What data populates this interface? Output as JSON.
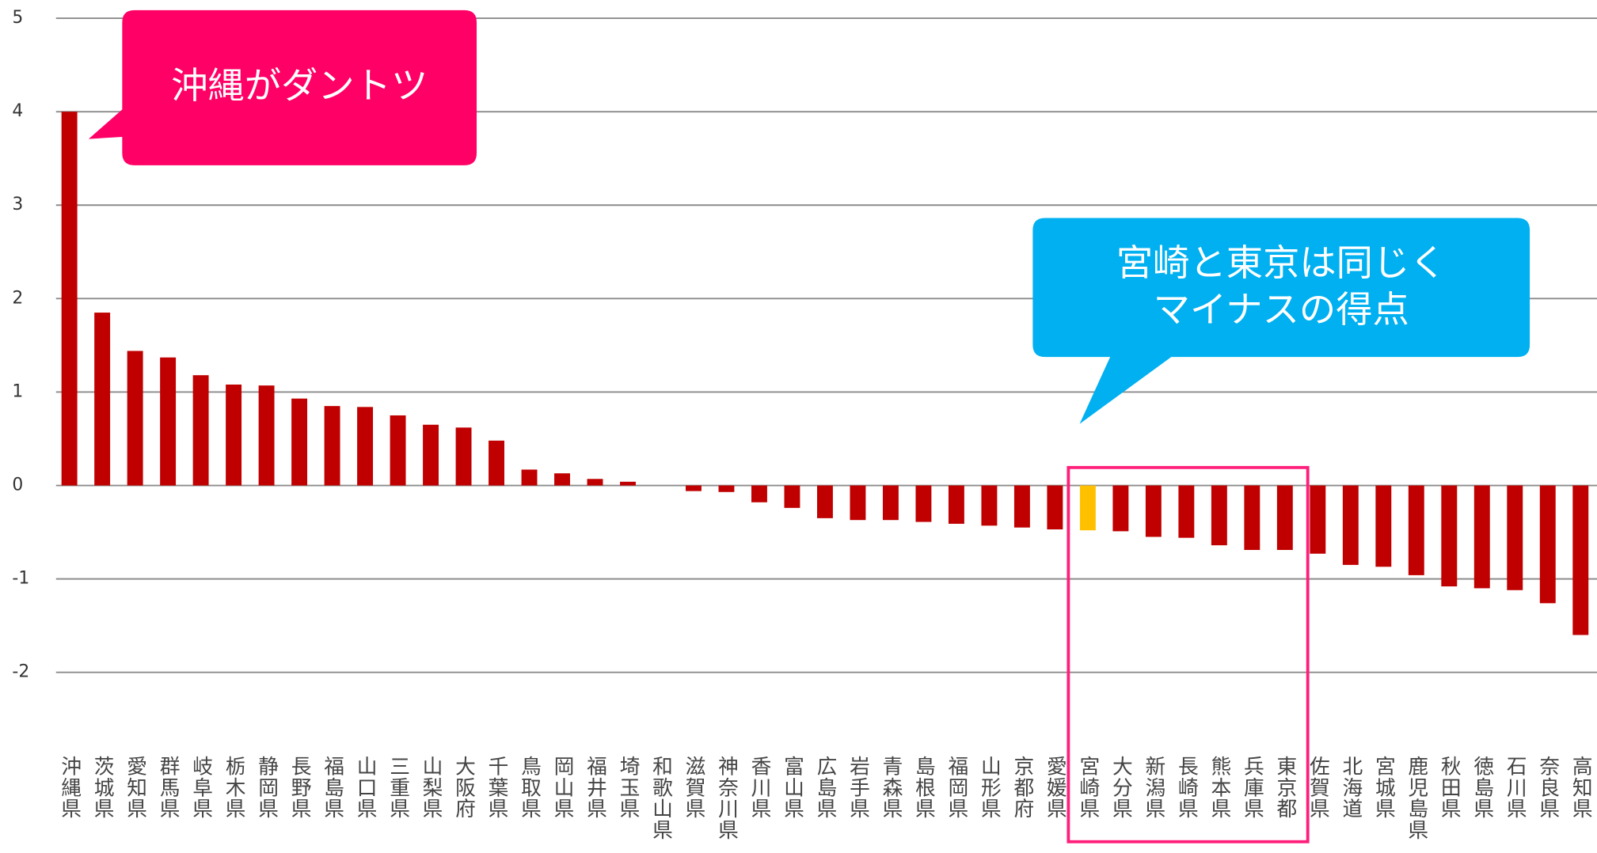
{
  "chart_data": {
    "type": "bar",
    "categories": [
      "沖縄県",
      "茨城県",
      "愛知県",
      "群馬県",
      "岐阜県",
      "栃木県",
      "静岡県",
      "長野県",
      "福島県",
      "山口県",
      "三重県",
      "山梨県",
      "大阪府",
      "千葉県",
      "鳥取県",
      "岡山県",
      "福井県",
      "埼玉県",
      "和歌山県",
      "滋賀県",
      "神奈川県",
      "香川県",
      "富山県",
      "広島県",
      "岩手県",
      "青森県",
      "島根県",
      "福岡県",
      "山形県",
      "京都府",
      "愛媛県",
      "宮崎県",
      "大分県",
      "新潟県",
      "長崎県",
      "熊本県",
      "兵庫県",
      "東京都",
      "佐賀県",
      "北海道",
      "宮城県",
      "鹿児島県",
      "秋田県",
      "徳島県",
      "石川県",
      "奈良県",
      "高知県"
    ],
    "values": [
      4.0,
      1.85,
      1.44,
      1.37,
      1.18,
      1.08,
      1.07,
      0.93,
      0.85,
      0.84,
      0.75,
      0.65,
      0.62,
      0.48,
      0.17,
      0.13,
      0.07,
      0.04,
      0.0,
      -0.06,
      -0.07,
      -0.18,
      -0.24,
      -0.35,
      -0.37,
      -0.37,
      -0.39,
      -0.41,
      -0.43,
      -0.45,
      -0.47,
      -0.48,
      -0.49,
      -0.55,
      -0.56,
      -0.64,
      -0.69,
      -0.69,
      -0.73,
      -0.85,
      -0.87,
      -0.96,
      -1.08,
      -1.1,
      -1.12,
      -1.26,
      -1.6
    ],
    "colors": [
      "#c00000",
      "#c00000",
      "#c00000",
      "#c00000",
      "#c00000",
      "#c00000",
      "#c00000",
      "#c00000",
      "#c00000",
      "#c00000",
      "#c00000",
      "#c00000",
      "#c00000",
      "#c00000",
      "#c00000",
      "#c00000",
      "#c00000",
      "#c00000",
      "#c00000",
      "#c00000",
      "#c00000",
      "#c00000",
      "#c00000",
      "#c00000",
      "#c00000",
      "#c00000",
      "#c00000",
      "#c00000",
      "#c00000",
      "#c00000",
      "#c00000",
      "#ffc000",
      "#c00000",
      "#c00000",
      "#c00000",
      "#c00000",
      "#c00000",
      "#c00000",
      "#c00000",
      "#c00000",
      "#c00000",
      "#c00000",
      "#c00000",
      "#c00000",
      "#c00000",
      "#c00000",
      "#c00000"
    ],
    "ylim": [
      -2,
      5
    ],
    "yticks": [
      -2,
      -1,
      0,
      1,
      2,
      3,
      4,
      5
    ],
    "grid": true,
    "annotations": [
      {
        "text": "沖縄がダントツ"
      },
      {
        "lines": [
          "宮崎と東京は同じく",
          "マイナスの得点"
        ]
      }
    ]
  }
}
